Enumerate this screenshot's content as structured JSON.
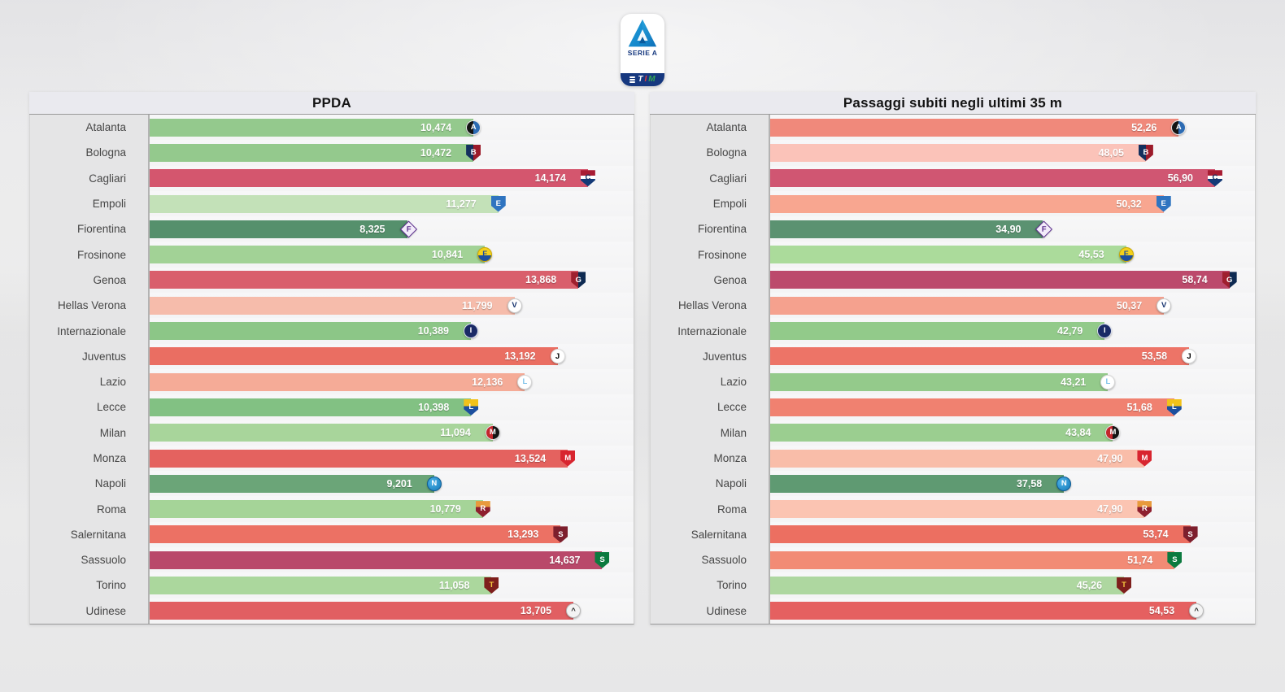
{
  "logo": {
    "league": "SERIE A",
    "sponsor": "TIM",
    "letters": [
      "T",
      "I",
      "M"
    ],
    "band_color": "#16387f",
    "triangle_colors": [
      "#2fb4e9",
      "#0d6fb8"
    ]
  },
  "chart_data": [
    {
      "type": "bar",
      "orientation": "horizontal",
      "title": "PPDA",
      "xlim": [
        0,
        15.65
      ],
      "grid": false,
      "legend": null,
      "value_format": "decimal-comma",
      "categories": [
        "Atalanta",
        "Bologna",
        "Cagliari",
        "Empoli",
        "Fiorentina",
        "Frosinone",
        "Genoa",
        "Hellas Verona",
        "Internazionale",
        "Juventus",
        "Lazio",
        "Lecce",
        "Milan",
        "Monza",
        "Napoli",
        "Roma",
        "Salernitana",
        "Sassuolo",
        "Torino",
        "Udinese"
      ],
      "values": [
        10.474,
        10.472,
        14.174,
        11.277,
        8.325,
        10.841,
        13.868,
        11.799,
        10.389,
        13.192,
        12.136,
        10.398,
        11.094,
        13.524,
        9.201,
        10.779,
        13.293,
        14.637,
        11.058,
        13.705
      ],
      "value_labels": [
        "10,474",
        "10,472",
        "14,174",
        "11,277",
        "8,325",
        "10,841",
        "13,868",
        "11,799",
        "10,389",
        "13,192",
        "12,136",
        "10,398",
        "11,094",
        "13,524",
        "9,201",
        "10,779",
        "13,293",
        "14,637",
        "11,058",
        "13,705"
      ],
      "bar_colors": [
        "#94c98d",
        "#94c98d",
        "#d4566e",
        "#c3e1b8",
        "#55906c",
        "#a2d296",
        "#d95f6c",
        "#f6bcab",
        "#8cc687",
        "#ea6e62",
        "#f5ab97",
        "#82c183",
        "#a8d59b",
        "#e4625f",
        "#6ba578",
        "#a5d498",
        "#ec7164",
        "#b9486a",
        "#abd79d",
        "#e15f62"
      ]
    },
    {
      "type": "bar",
      "orientation": "horizontal",
      "title": "Passaggi subiti negli ultimi 35 m",
      "xlim": [
        0,
        62
      ],
      "grid": false,
      "legend": null,
      "value_format": "decimal-comma",
      "categories": [
        "Atalanta",
        "Bologna",
        "Cagliari",
        "Empoli",
        "Fiorentina",
        "Frosinone",
        "Genoa",
        "Hellas Verona",
        "Internazionale",
        "Juventus",
        "Lazio",
        "Lecce",
        "Milan",
        "Monza",
        "Napoli",
        "Roma",
        "Salernitana",
        "Sassuolo",
        "Torino",
        "Udinese"
      ],
      "values": [
        52.26,
        48.05,
        56.9,
        50.32,
        34.9,
        45.53,
        58.74,
        50.37,
        42.79,
        53.58,
        43.21,
        51.68,
        43.84,
        47.9,
        37.58,
        47.9,
        53.74,
        51.74,
        45.26,
        54.53
      ],
      "value_labels": [
        "52,26",
        "48,05",
        "56,90",
        "50,32",
        "34,90",
        "45,53",
        "58,74",
        "50,37",
        "42,79",
        "53,58",
        "43,21",
        "51,68",
        "43,84",
        "47,90",
        "37,58",
        "47,90",
        "53,74",
        "51,74",
        "45,26",
        "54,53"
      ],
      "bar_colors": [
        "#f0897b",
        "#fbc3b9",
        "#d05672",
        "#f8a690",
        "#5b9271",
        "#abdb9b",
        "#bc4a6c",
        "#f5a18e",
        "#92ca8a",
        "#ed7467",
        "#94ca8b",
        "#f08170",
        "#9bce90",
        "#f9bda9",
        "#5f9a72",
        "#fbc4b2",
        "#ec6f61",
        "#f28b75",
        "#aed7a0",
        "#e56060"
      ]
    }
  ],
  "crests": {
    "atalanta": {
      "shape": "circle",
      "bg": "linear-gradient(90deg,#131313 50%,#2c6bb3 50%)",
      "border": "#e8e8e8",
      "glyph": "A",
      "fg": "#ffffff"
    },
    "bologna": {
      "shape": "shield",
      "bg": "linear-gradient(90deg,#14305e 50%,#9c1b2a 50%)",
      "border": "",
      "glyph": "B",
      "fg": "#ffffff"
    },
    "cagliari": {
      "shape": "shield",
      "bg": "linear-gradient(180deg,#a81c33 36%,#ffffff 36%,#ffffff 54%,#143a77 54%)",
      "border": "",
      "glyph": "C",
      "fg": "#0f2f63"
    },
    "empoli": {
      "shape": "shield",
      "bg": "#2f74c0",
      "border": "",
      "glyph": "E",
      "fg": "#ffffff"
    },
    "fiorentina": {
      "shape": "diamond",
      "bg": "#f3ecfa",
      "border": "#5b2d8e",
      "glyph": "F",
      "fg": "#5b2d8e"
    },
    "frosinone": {
      "shape": "circle",
      "bg": "linear-gradient(180deg,#f3d01c 55%,#1c4f9e 45%)",
      "border": "#c9a909",
      "glyph": "F",
      "fg": "#1c4f9e"
    },
    "genoa": {
      "shape": "shield",
      "bg": "linear-gradient(90deg,#9f1f2e 50%,#0e2a52 50%)",
      "border": "",
      "glyph": "G",
      "fg": "#ffffff"
    },
    "hellas-verona": {
      "shape": "circle",
      "bg": "#ffffff",
      "border": "#c9c9c9",
      "glyph": "V",
      "fg": "#16336e"
    },
    "internazionale": {
      "shape": "circle",
      "bg": "#1a2a66",
      "border": "#d8deee",
      "glyph": "I",
      "fg": "#ffffff"
    },
    "juventus": {
      "shape": "circle",
      "bg": "#ffffff",
      "border": "#dcdcdc",
      "glyph": "J",
      "fg": "#000000"
    },
    "lazio": {
      "shape": "circle",
      "bg": "#ffffff",
      "border": "#d8d8d8",
      "glyph": "L",
      "fg": "#7fc3ea"
    },
    "lecce": {
      "shape": "shield",
      "bg": "linear-gradient(180deg,#f2c21a 42%,#1c4f9e 42%)",
      "border": "",
      "glyph": "L",
      "fg": "#ffffff"
    },
    "milan": {
      "shape": "circle",
      "bg": "linear-gradient(90deg,#c3262c 50%,#141414 50%)",
      "border": "#e2e2e2",
      "glyph": "M",
      "fg": "#ffffff"
    },
    "monza": {
      "shape": "shield",
      "bg": "#d8252f",
      "border": "",
      "glyph": "M",
      "fg": "#ffffff"
    },
    "napoli": {
      "shape": "circle",
      "bg": "radial-gradient(circle at 35% 35%, #4db3e8, #1478b8)",
      "border": "#0e5c94",
      "glyph": "N",
      "fg": "#ffffff"
    },
    "roma": {
      "shape": "shield",
      "bg": "linear-gradient(180deg,#e89a3c 38%,#8e1f2f 38%)",
      "border": "",
      "glyph": "R",
      "fg": "#ffffff"
    },
    "salernitana": {
      "shape": "shield",
      "bg": "#7d1f2d",
      "border": "",
      "glyph": "S",
      "fg": "#ffffff"
    },
    "sassuolo": {
      "shape": "shield",
      "bg": "#0c7a3f",
      "border": "",
      "glyph": "S",
      "fg": "#ffffff"
    },
    "torino": {
      "shape": "shield",
      "bg": "#7e1f1c",
      "border": "",
      "glyph": "T",
      "fg": "#f3c63f"
    },
    "udinese": {
      "shape": "circle",
      "bg": "#f4f4f4",
      "border": "#b9b9b9",
      "glyph": "^",
      "fg": "#222222"
    }
  }
}
